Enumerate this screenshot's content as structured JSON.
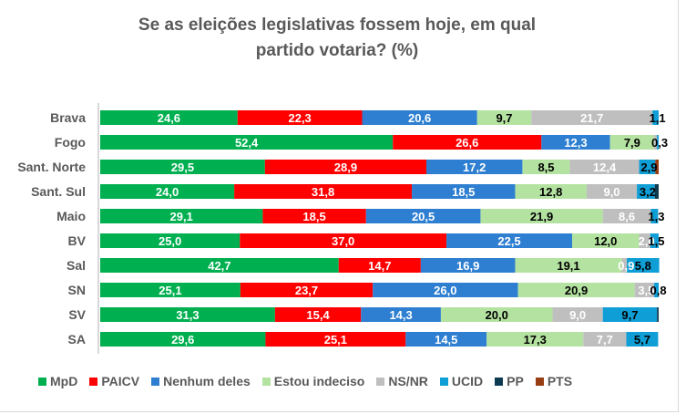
{
  "chart_data": {
    "type": "bar",
    "orientation": "horizontal",
    "stacked": "100%",
    "title": "Se as eleições legislativas fossem hoje, em qual partido votaria? (%)",
    "title_lines": [
      "Se as eleições legislativas fossem hoje, em qual",
      "partido votaria? (%)"
    ],
    "xlabel": "",
    "ylabel": "",
    "xlim": [
      0,
      100
    ],
    "grid": false,
    "legend_position": "bottom",
    "categories": [
      "Brava",
      "Fogo",
      "Sant. Norte",
      "Sant. Sul",
      "Maio",
      "BV",
      "Sal",
      "SN",
      "SV",
      "SA"
    ],
    "series": [
      {
        "name": "MpD",
        "color": "#00b050",
        "label_color": "#ffffff",
        "values": [
          24.6,
          52.4,
          29.5,
          24.0,
          29.1,
          25.0,
          42.7,
          25.1,
          31.3,
          29.6
        ]
      },
      {
        "name": "PAICV",
        "color": "#ff0000",
        "label_color": "#ffffff",
        "values": [
          22.3,
          26.6,
          28.9,
          31.8,
          18.5,
          37.0,
          14.7,
          23.7,
          15.4,
          25.1
        ]
      },
      {
        "name": "Nenhum deles",
        "color": "#2e7fd1",
        "label_color": "#ffffff",
        "values": [
          20.6,
          12.3,
          17.2,
          18.5,
          20.5,
          22.5,
          16.9,
          26.0,
          14.3,
          14.5
        ]
      },
      {
        "name": "Estou indeciso",
        "color": "#b4e2a1",
        "label_color": "#000000",
        "values": [
          9.7,
          7.9,
          8.5,
          12.8,
          21.9,
          12.0,
          19.1,
          20.9,
          20.0,
          17.3
        ]
      },
      {
        "name": "NS/NR",
        "color": "#bfbfbf",
        "label_color": "#ffffff",
        "values": [
          21.7,
          0.5,
          12.4,
          9.0,
          8.6,
          2.0,
          0.9,
          3.5,
          9.0,
          7.7
        ]
      },
      {
        "name": "UCID",
        "color": "#0f9ed5",
        "label_color": "#000000",
        "values": [
          1.1,
          0.3,
          2.9,
          3.2,
          1.3,
          1.5,
          5.8,
          0.8,
          9.7,
          5.7
        ]
      },
      {
        "name": "PP",
        "color": "#0e3a52",
        "label_color": "#000000",
        "values": [
          0,
          0,
          0,
          0.7,
          0,
          0,
          0,
          0,
          0.3,
          0
        ]
      },
      {
        "name": "PTS",
        "color": "#973c13",
        "label_color": "#000000",
        "values": [
          0,
          0,
          0.6,
          0,
          0,
          0,
          0,
          0,
          0,
          0
        ]
      }
    ],
    "data_labels": [
      [
        "24,6",
        "22,3",
        "20,6",
        "9,7",
        "21,7",
        "1,1",
        "",
        ""
      ],
      [
        "52,4",
        "26,6",
        "12,3",
        "7,9",
        "",
        "0,3",
        "",
        ""
      ],
      [
        "29,5",
        "28,9",
        "17,2",
        "8,5",
        "12,4",
        "2,9",
        "",
        ""
      ],
      [
        "24,0",
        "31,8",
        "18,5",
        "12,8",
        "9,0",
        "3,2",
        "",
        ""
      ],
      [
        "29,1",
        "18,5",
        "20,5",
        "21,9",
        "8,6",
        "1,3",
        "",
        ""
      ],
      [
        "25,0",
        "37,0",
        "22,5",
        "12,0",
        "2,0",
        "1,5",
        "",
        ""
      ],
      [
        "42,7",
        "14,7",
        "16,9",
        "19,1",
        "0,9",
        "5,8",
        "",
        ""
      ],
      [
        "25,1",
        "23,7",
        "26,0",
        "20,9",
        "3,5",
        "0,8",
        "",
        ""
      ],
      [
        "31,3",
        "15,4",
        "14,3",
        "20,0",
        "9,0",
        "9,7",
        "",
        ""
      ],
      [
        "29,6",
        "25,1",
        "14,5",
        "17,3",
        "7,7",
        "5,7",
        "",
        ""
      ]
    ]
  }
}
